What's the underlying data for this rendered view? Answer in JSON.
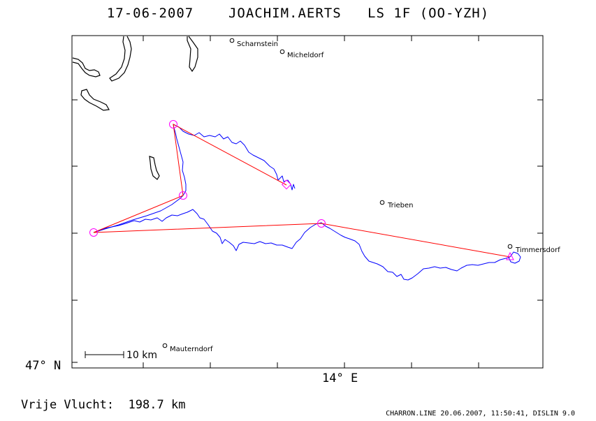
{
  "header": {
    "date": "17-06-2007",
    "pilot": "JOACHIM.AERTS",
    "glider": "LS 1F (OO-YZH)"
  },
  "axes": {
    "lat_label": "47° N",
    "lon_label": "14° E"
  },
  "towns": [
    {
      "name": "Scharnstein"
    },
    {
      "name": "Micheldorf"
    },
    {
      "name": "Trieben"
    },
    {
      "name": "Timmersdorf"
    },
    {
      "name": "Mauterndorf"
    }
  ],
  "scale": {
    "label": "10 km"
  },
  "distance": {
    "label": "Vrije Vlucht:",
    "value": "198.7 km"
  },
  "footer": "CHARRON.LINE 20.06.2007, 11:50:41, DISLIN 9.0",
  "colors": {
    "track": "#0000ff",
    "task_line": "#ff0000",
    "turnpoint": "#ff00ff",
    "frame": "#000000"
  }
}
